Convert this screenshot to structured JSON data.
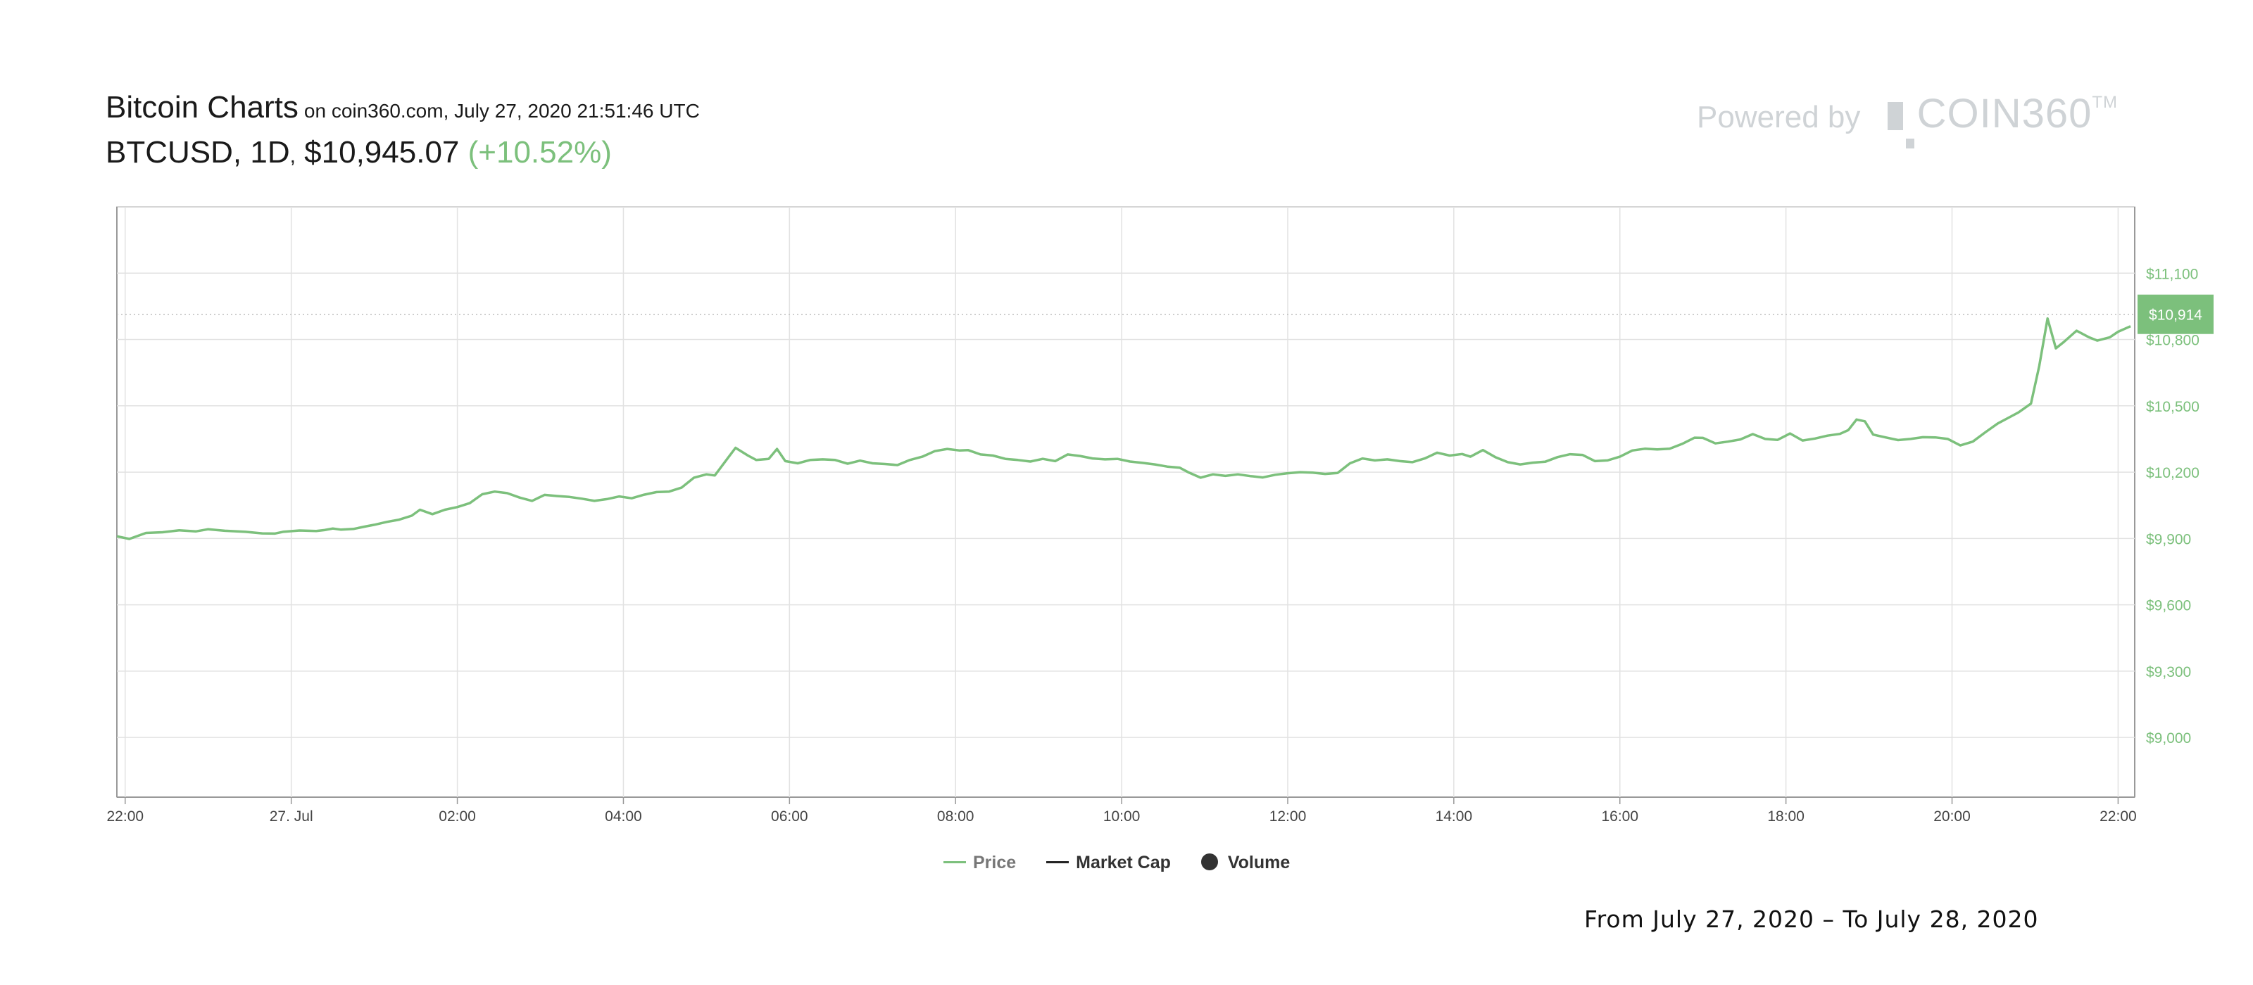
{
  "header": {
    "title": "Bitcoin Charts",
    "subtitle": "on coin360.com, July 27, 2020 21:51:46 UTC",
    "pair": "BTCUSD, 1D",
    "separator": ",",
    "price": "$10,945.07",
    "change": "(+10.52%)"
  },
  "brand": {
    "powered_by": "Powered by",
    "logo_text": "COIN360",
    "tm": "TM"
  },
  "colors": {
    "price_line": "#7cc07c",
    "grid": "#e2e2e2",
    "axis": "#999999",
    "last_price_tag": "#7cc07c"
  },
  "legend": {
    "price": "Price",
    "market_cap": "Market Cap",
    "volume": "Volume"
  },
  "date_range": "From July 27, 2020 – To July 28, 2020",
  "chart_data": {
    "type": "line",
    "x_labels": [
      "22:00",
      "27. Jul",
      "02:00",
      "04:00",
      "06:00",
      "08:00",
      "10:00",
      "12:00",
      "14:00",
      "16:00",
      "18:00",
      "20:00",
      "22:00"
    ],
    "x_range_hours": [
      -0.1,
      24.2
    ],
    "y_ticks": [
      9000,
      9300,
      9600,
      9900,
      10200,
      10500,
      10800,
      11100
    ],
    "y_tick_labels": [
      "$9,000",
      "$9,300",
      "$9,600",
      "$9,900",
      "$10,200",
      "$10,500",
      "$10,800",
      "$11,100"
    ],
    "ylim": [
      8730,
      11400
    ],
    "last_price_label": "$10,914",
    "last_price": 10914,
    "grid": true,
    "legend_position": "bottom-center",
    "series": [
      {
        "name": "Price",
        "points": [
          [
            -0.1,
            9910
          ],
          [
            0.05,
            9898
          ],
          [
            0.25,
            9925
          ],
          [
            0.45,
            9928
          ],
          [
            0.65,
            9937
          ],
          [
            0.85,
            9932
          ],
          [
            1.0,
            9942
          ],
          [
            1.2,
            9935
          ],
          [
            1.45,
            9930
          ],
          [
            1.65,
            9923
          ],
          [
            1.8,
            9922
          ],
          [
            1.9,
            9930
          ],
          [
            2.1,
            9936
          ],
          [
            2.3,
            9934
          ],
          [
            2.4,
            9938
          ],
          [
            2.5,
            9945
          ],
          [
            2.6,
            9940
          ],
          [
            2.75,
            9943
          ],
          [
            2.9,
            9955
          ],
          [
            3.0,
            9962
          ],
          [
            3.15,
            9975
          ],
          [
            3.3,
            9985
          ],
          [
            3.45,
            10003
          ],
          [
            3.55,
            10030
          ],
          [
            3.7,
            10010
          ],
          [
            3.85,
            10030
          ],
          [
            4.0,
            10042
          ],
          [
            4.15,
            10060
          ],
          [
            4.3,
            10100
          ],
          [
            4.45,
            10112
          ],
          [
            4.6,
            10105
          ],
          [
            4.75,
            10085
          ],
          [
            4.9,
            10070
          ],
          [
            5.05,
            10097
          ],
          [
            5.2,
            10092
          ],
          [
            5.35,
            10088
          ],
          [
            5.5,
            10080
          ],
          [
            5.65,
            10070
          ],
          [
            5.8,
            10078
          ],
          [
            5.95,
            10090
          ],
          [
            6.1,
            10082
          ],
          [
            6.25,
            10098
          ],
          [
            6.4,
            10110
          ],
          [
            6.55,
            10112
          ],
          [
            6.7,
            10130
          ],
          [
            6.85,
            10175
          ],
          [
            7.0,
            10190
          ],
          [
            7.1,
            10185
          ],
          [
            7.25,
            10260
          ],
          [
            7.35,
            10310
          ],
          [
            7.5,
            10275
          ],
          [
            7.6,
            10255
          ],
          [
            7.75,
            10260
          ],
          [
            7.85,
            10305
          ],
          [
            7.95,
            10250
          ],
          [
            8.1,
            10240
          ],
          [
            8.25,
            10255
          ],
          [
            8.4,
            10258
          ],
          [
            8.55,
            10255
          ],
          [
            8.7,
            10238
          ],
          [
            8.85,
            10252
          ],
          [
            9.0,
            10240
          ],
          [
            9.15,
            10237
          ],
          [
            9.3,
            10232
          ],
          [
            9.45,
            10255
          ],
          [
            9.6,
            10270
          ],
          [
            9.75,
            10295
          ],
          [
            9.9,
            10305
          ],
          [
            10.05,
            10298
          ],
          [
            10.15,
            10300
          ],
          [
            10.3,
            10280
          ],
          [
            10.45,
            10275
          ],
          [
            10.6,
            10260
          ],
          [
            10.75,
            10255
          ],
          [
            10.9,
            10248
          ],
          [
            11.05,
            10260
          ],
          [
            11.2,
            10250
          ],
          [
            11.35,
            10280
          ],
          [
            11.5,
            10273
          ],
          [
            11.65,
            10262
          ],
          [
            11.8,
            10258
          ],
          [
            11.95,
            10260
          ],
          [
            12.1,
            10248
          ],
          [
            12.25,
            10242
          ],
          [
            12.4,
            10235
          ],
          [
            12.55,
            10225
          ],
          [
            12.7,
            10220
          ],
          [
            12.8,
            10200
          ],
          [
            12.95,
            10175
          ],
          [
            13.1,
            10190
          ],
          [
            13.25,
            10183
          ],
          [
            13.4,
            10190
          ],
          [
            13.55,
            10182
          ],
          [
            13.7,
            10176
          ],
          [
            13.85,
            10188
          ],
          [
            14.0,
            10195
          ],
          [
            14.15,
            10200
          ],
          [
            14.3,
            10198
          ],
          [
            14.45,
            10192
          ],
          [
            14.6,
            10196
          ],
          [
            14.75,
            10240
          ],
          [
            14.9,
            10262
          ],
          [
            15.05,
            10253
          ],
          [
            15.2,
            10258
          ],
          [
            15.35,
            10250
          ],
          [
            15.5,
            10245
          ],
          [
            15.65,
            10262
          ],
          [
            15.8,
            10288
          ],
          [
            15.95,
            10275
          ],
          [
            16.1,
            10282
          ],
          [
            16.2,
            10270
          ],
          [
            16.35,
            10300
          ],
          [
            16.5,
            10268
          ],
          [
            16.65,
            10245
          ],
          [
            16.8,
            10235
          ],
          [
            16.95,
            10243
          ],
          [
            17.1,
            10247
          ],
          [
            17.25,
            10268
          ],
          [
            17.4,
            10281
          ],
          [
            17.55,
            10278
          ],
          [
            17.7,
            10250
          ],
          [
            17.85,
            10253
          ],
          [
            18.0,
            10270
          ],
          [
            18.15,
            10298
          ],
          [
            18.3,
            10306
          ],
          [
            18.45,
            10303
          ],
          [
            18.6,
            10306
          ],
          [
            18.75,
            10328
          ],
          [
            18.9,
            10356
          ],
          [
            19.0,
            10355
          ],
          [
            19.15,
            10330
          ],
          [
            19.3,
            10338
          ],
          [
            19.45,
            10348
          ],
          [
            19.6,
            10372
          ],
          [
            19.75,
            10350
          ],
          [
            19.9,
            10346
          ],
          [
            20.05,
            10375
          ],
          [
            20.2,
            10343
          ],
          [
            20.35,
            10352
          ],
          [
            20.5,
            10365
          ],
          [
            20.65,
            10373
          ],
          [
            20.75,
            10390
          ],
          [
            20.85,
            10438
          ],
          [
            20.95,
            10430
          ],
          [
            21.05,
            10370
          ],
          [
            21.2,
            10357
          ],
          [
            21.35,
            10345
          ],
          [
            21.5,
            10350
          ],
          [
            21.65,
            10358
          ],
          [
            21.8,
            10357
          ],
          [
            21.95,
            10350
          ],
          [
            22.1,
            10321
          ],
          [
            22.25,
            10338
          ],
          [
            22.4,
            10380
          ],
          [
            22.55,
            10420
          ],
          [
            22.7,
            10450
          ],
          [
            22.8,
            10470
          ],
          [
            22.95,
            10510
          ],
          [
            23.05,
            10680
          ],
          [
            23.15,
            10895
          ],
          [
            23.25,
            10760
          ],
          [
            23.35,
            10790
          ],
          [
            23.5,
            10840
          ],
          [
            23.65,
            10810
          ],
          [
            23.75,
            10795
          ],
          [
            23.9,
            10810
          ],
          [
            24.0,
            10835
          ],
          [
            24.15,
            10860
          ]
        ]
      }
    ]
  }
}
